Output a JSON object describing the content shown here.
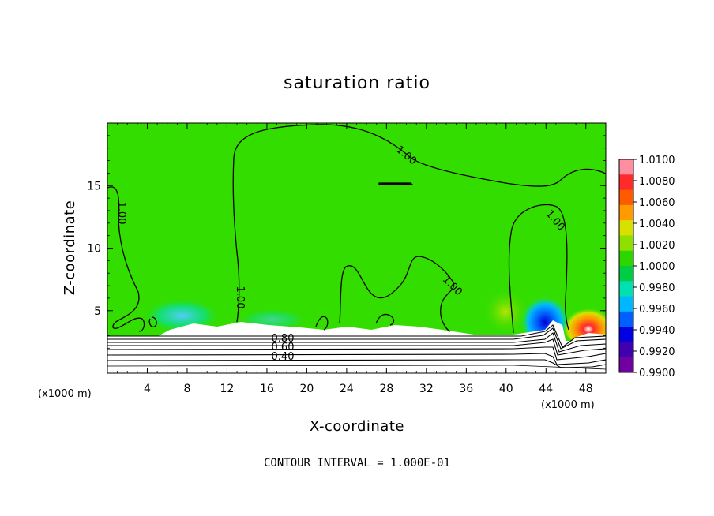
{
  "chart_data": {
    "type": "heatmap",
    "title": "saturation ratio",
    "xlabel": "X-coordinate",
    "ylabel": "Z-coordinate",
    "x_unit": "(x1000 m)",
    "x_unit_right": "(x1000 m)",
    "xlim": [
      0,
      50
    ],
    "ylim": [
      0,
      20
    ],
    "x_ticks": [
      4,
      8,
      12,
      16,
      20,
      24,
      28,
      32,
      36,
      40,
      44,
      48
    ],
    "y_ticks": [
      5,
      10,
      15
    ],
    "footer": "CONTOUR INTERVAL = 1.000E-01",
    "colorbar": {
      "min": 0.99,
      "max": 1.01,
      "labels": [
        "1.0100",
        "1.0080",
        "1.0060",
        "1.0040",
        "1.0020",
        "1.0000",
        "0.9980",
        "0.9960",
        "0.9940",
        "0.9920",
        "0.9900"
      ],
      "colors": [
        "#ff8fa0",
        "#ff2a2a",
        "#ff5a00",
        "#ff9a00",
        "#d8e000",
        "#8ee000",
        "#2ed600",
        "#00cc44",
        "#00e0b0",
        "#00b8ff",
        "#0060ff",
        "#0000e0",
        "#4000b0",
        "#7000a0"
      ]
    },
    "background_value": 1.0,
    "background_color": "#33dd00",
    "contour_labels": [
      {
        "text": "1.00",
        "x": 2.3,
        "z": 13.0,
        "angle": 90
      },
      {
        "text": "1.00",
        "x": 13.4,
        "z": 6.1,
        "angle": 90
      },
      {
        "text": "1.00",
        "x": 29.5,
        "z": 17.8,
        "angle": 40
      },
      {
        "text": "1.00",
        "x": 34.0,
        "z": 7.0,
        "angle": 45
      },
      {
        "text": "1.00",
        "x": 45.0,
        "z": 12.3,
        "angle": 50
      },
      {
        "text": "0.80",
        "x": 17.8,
        "z": 2.8,
        "angle": 0
      },
      {
        "text": "0.60",
        "x": 17.8,
        "z": 2.2,
        "angle": 0
      },
      {
        "text": "0.40",
        "x": 17.8,
        "z": 1.4,
        "angle": 0
      }
    ]
  }
}
